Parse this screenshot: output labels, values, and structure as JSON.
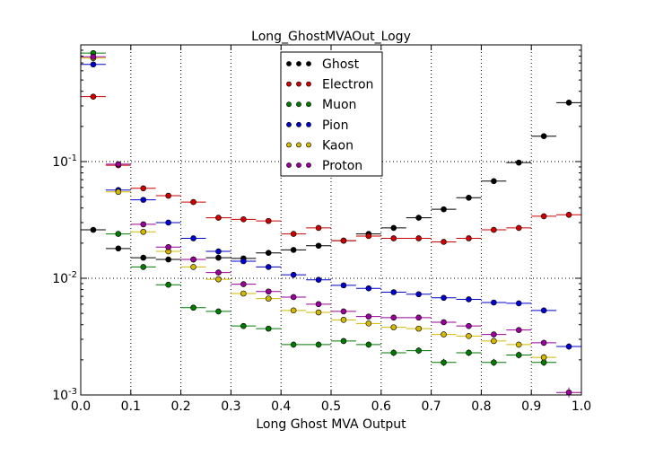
{
  "chart_data": {
    "type": "scatter",
    "title": "Long_GhostMVAOut_Logy",
    "xlabel": "Long Ghost MVA Output",
    "ylabel": "",
    "xlim": [
      0.0,
      1.0
    ],
    "ylim": [
      0.001,
      1.0
    ],
    "yscale": "log",
    "grid": true,
    "legend_position": "top-center",
    "x_ticks": [
      "0.0",
      "0.1",
      "0.2",
      "0.3",
      "0.4",
      "0.5",
      "0.6",
      "0.7",
      "0.8",
      "0.9",
      "1.0"
    ],
    "bin_width": 0.05,
    "x": [
      0.025,
      0.075,
      0.125,
      0.175,
      0.225,
      0.275,
      0.325,
      0.375,
      0.425,
      0.475,
      0.525,
      0.575,
      0.625,
      0.675,
      0.725,
      0.775,
      0.825,
      0.875,
      0.925,
      0.975
    ],
    "series": [
      {
        "name": "Ghost",
        "color": "#000000",
        "values": [
          0.026,
          0.018,
          0.015,
          0.0145,
          0.0145,
          0.015,
          0.0148,
          0.0165,
          0.0175,
          0.019,
          0.021,
          0.024,
          0.027,
          0.033,
          0.039,
          0.049,
          0.068,
          0.098,
          0.165,
          0.32
        ]
      },
      {
        "name": "Electron",
        "color": "#cc0000",
        "values": [
          0.36,
          0.093,
          0.059,
          0.051,
          0.045,
          0.033,
          0.032,
          0.031,
          0.024,
          0.027,
          0.021,
          0.023,
          0.022,
          0.022,
          0.0205,
          0.022,
          0.026,
          0.027,
          0.034,
          0.035
        ]
      },
      {
        "name": "Muon",
        "color": "#007a00",
        "values": [
          0.85,
          0.024,
          0.0125,
          0.0088,
          0.0056,
          0.0052,
          0.0039,
          0.0037,
          0.0027,
          0.0027,
          0.0029,
          0.0027,
          0.0023,
          0.0024,
          0.0019,
          0.0023,
          0.0019,
          0.0022,
          0.0019,
          null
        ]
      },
      {
        "name": "Pion",
        "color": "#0000cc",
        "values": [
          0.68,
          0.057,
          0.047,
          0.03,
          0.022,
          0.017,
          0.014,
          0.0125,
          0.0107,
          0.0097,
          0.0087,
          0.0082,
          0.0076,
          0.0073,
          0.0068,
          0.0066,
          0.0062,
          0.0061,
          0.0053,
          0.0026
        ]
      },
      {
        "name": "Kaon",
        "color": "#d4b800",
        "values": [
          0.77,
          0.055,
          0.025,
          0.017,
          0.0125,
          0.0098,
          0.0074,
          0.0067,
          0.0053,
          0.0051,
          0.0044,
          0.0041,
          0.0038,
          0.0037,
          0.0033,
          0.0032,
          0.0029,
          0.0027,
          0.0021,
          null
        ]
      },
      {
        "name": "Proton",
        "color": "#990099",
        "values": [
          0.79,
          0.095,
          0.029,
          0.0185,
          0.0145,
          0.0112,
          0.0089,
          0.0077,
          0.0069,
          0.006,
          0.0052,
          0.0047,
          0.0046,
          0.0046,
          0.0042,
          0.0039,
          0.0033,
          0.0036,
          0.0028,
          0.00105
        ]
      }
    ]
  }
}
